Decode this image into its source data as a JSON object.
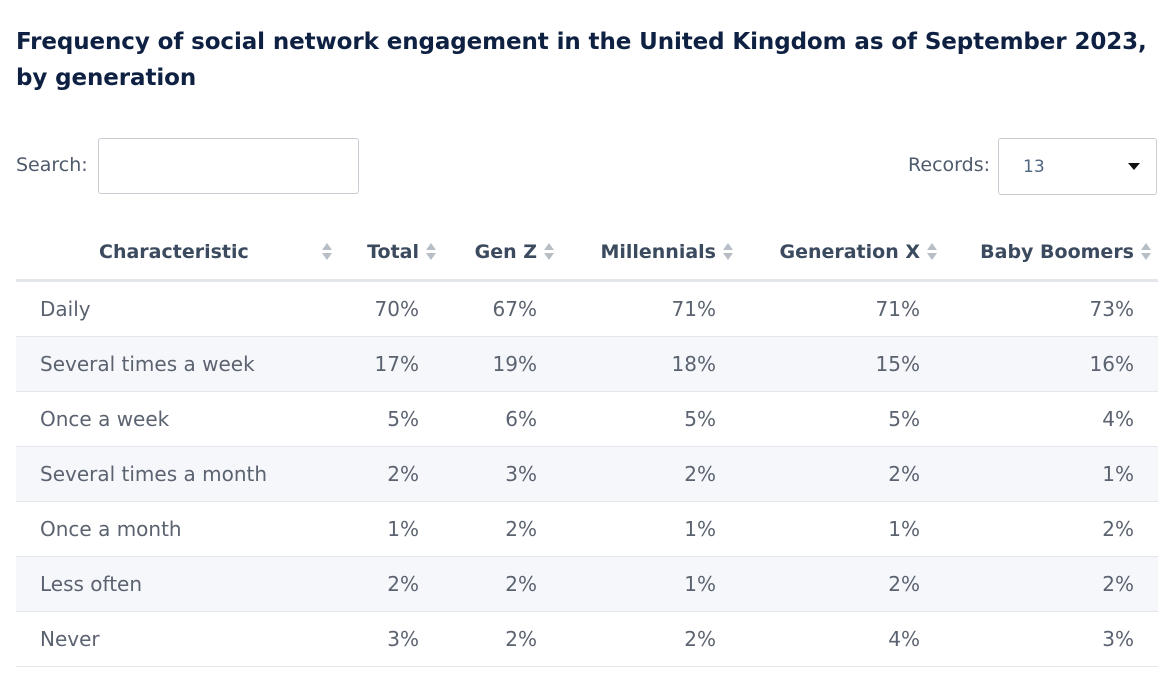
{
  "title": "Frequency of social network engagement in the United Kingdom as of September 2023, by generation",
  "controls": {
    "search_label": "Search:",
    "search_value": "",
    "records_label": "Records:",
    "records_value": "13"
  },
  "chart_data": {
    "type": "table",
    "title": "Frequency of social network engagement in the United Kingdom as of September 2023, by generation",
    "columns": [
      "Characteristic",
      "Total",
      "Gen Z",
      "Millennials",
      "Generation X",
      "Baby Boomers"
    ],
    "rows": [
      [
        "Daily",
        "70%",
        "67%",
        "71%",
        "71%",
        "73%"
      ],
      [
        "Several times a week",
        "17%",
        "19%",
        "18%",
        "15%",
        "16%"
      ],
      [
        "Once a week",
        "5%",
        "6%",
        "5%",
        "5%",
        "4%"
      ],
      [
        "Several times a month",
        "2%",
        "3%",
        "2%",
        "2%",
        "1%"
      ],
      [
        "Once a month",
        "1%",
        "2%",
        "1%",
        "1%",
        "2%"
      ],
      [
        "Less often",
        "2%",
        "2%",
        "1%",
        "2%",
        "2%"
      ],
      [
        "Never",
        "3%",
        "2%",
        "2%",
        "4%",
        "3%"
      ]
    ]
  }
}
